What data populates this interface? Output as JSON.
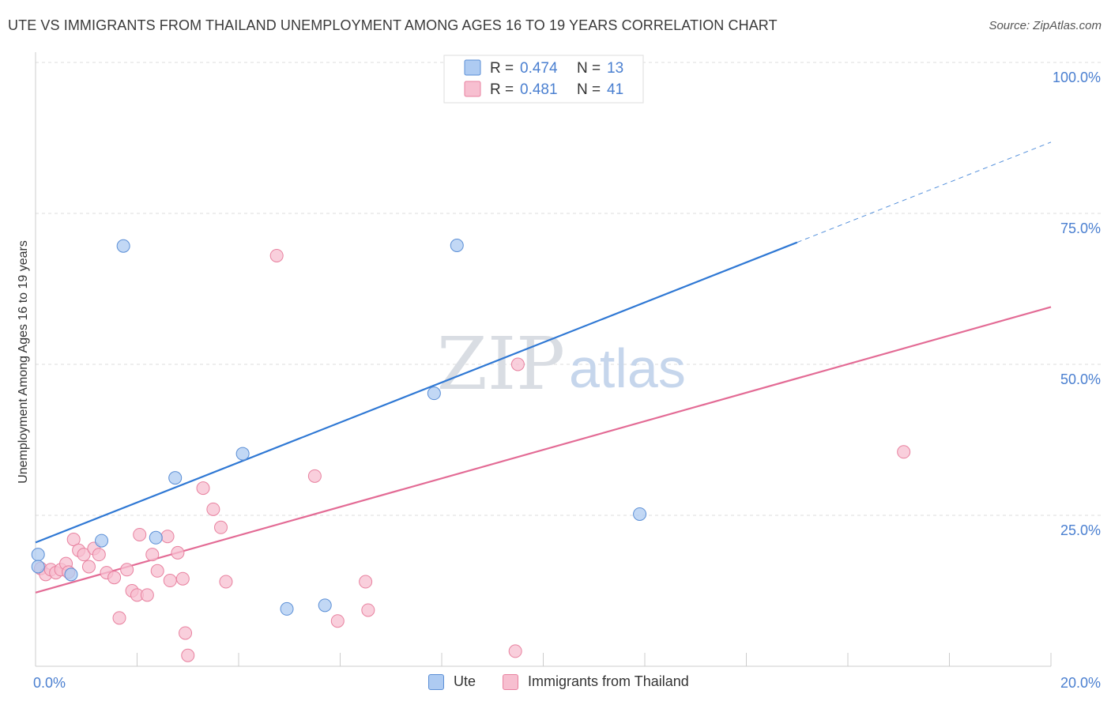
{
  "header": {
    "title": "UTE VS IMMIGRANTS FROM THAILAND UNEMPLOYMENT AMONG AGES 16 TO 19 YEARS CORRELATION CHART",
    "source": "Source: ZipAtlas.com"
  },
  "watermark": {
    "zip": "ZIP",
    "atlas": "atlas"
  },
  "colors": {
    "ute_fill": "#aecbf2",
    "ute_stroke": "#5b8fd6",
    "ute_line": "#2f78d4",
    "thai_fill": "#f7bfd0",
    "thai_stroke": "#e8819f",
    "thai_line": "#e36b95",
    "tick_text": "#4a7fd0",
    "grid": "#dddddd"
  },
  "legend": {
    "rows": [
      {
        "series": "Ute",
        "r_label": "R =",
        "r_value": "0.474",
        "n_label": "N =",
        "n_value": "13"
      },
      {
        "series": "Immigrants from Thailand",
        "r_label": "R =",
        "r_value": "0.481",
        "n_label": "N =",
        "n_value": "41"
      }
    ],
    "bottom": [
      "Ute",
      "Immigrants from Thailand"
    ]
  },
  "chart_data": {
    "type": "scatter",
    "title": "UTE VS IMMIGRANTS FROM THAILAND UNEMPLOYMENT AMONG AGES 16 TO 19 YEARS CORRELATION CHART",
    "xlabel": "",
    "ylabel": "Unemployment Among Ages 16 to 19 years",
    "xlim": [
      0,
      20
    ],
    "ylim": [
      0,
      100
    ],
    "x_tick_labels": [
      {
        "value": 0,
        "label": "0.0%"
      },
      {
        "value": 20,
        "label": "20.0%"
      }
    ],
    "y_tick_labels": [
      {
        "value": 25,
        "label": "25.0%"
      },
      {
        "value": 50,
        "label": "50.0%"
      },
      {
        "value": 75,
        "label": "75.0%"
      },
      {
        "value": 100,
        "label": "100.0%"
      }
    ],
    "x_minor_ticks": [
      0,
      2,
      4,
      6,
      8,
      10,
      12,
      14,
      16,
      18,
      20
    ],
    "grid": true,
    "legend_placement": "top-center",
    "series": [
      {
        "name": "Ute",
        "color": "#aecbf2",
        "points": [
          [
            0.05,
            18.5
          ],
          [
            0.05,
            16.5
          ],
          [
            0.7,
            15.2
          ],
          [
            1.3,
            20.8
          ],
          [
            1.73,
            69.6
          ],
          [
            2.37,
            21.3
          ],
          [
            2.75,
            31.2
          ],
          [
            4.08,
            35.2
          ],
          [
            4.95,
            9.5
          ],
          [
            5.7,
            10.1
          ],
          [
            7.85,
            45.2
          ],
          [
            8.3,
            69.7
          ],
          [
            11.9,
            25.2
          ]
        ],
        "trend": {
          "x_start": 0,
          "y_start": 20.5,
          "x_solid_end": 15,
          "y_solid_end": 70.2,
          "x_end": 20,
          "y_end": 86.8
        }
      },
      {
        "name": "Immigrants from Thailand",
        "color": "#f7bfd0",
        "points": [
          [
            0.1,
            16.2
          ],
          [
            0.2,
            15.2
          ],
          [
            0.3,
            16.0
          ],
          [
            0.4,
            15.5
          ],
          [
            0.5,
            16.0
          ],
          [
            0.6,
            17.0
          ],
          [
            0.65,
            15.6
          ],
          [
            0.75,
            21.0
          ],
          [
            0.85,
            19.2
          ],
          [
            0.95,
            18.5
          ],
          [
            1.05,
            16.5
          ],
          [
            1.15,
            19.5
          ],
          [
            1.25,
            18.5
          ],
          [
            1.4,
            15.5
          ],
          [
            1.55,
            14.7
          ],
          [
            1.65,
            8.0
          ],
          [
            1.8,
            16.0
          ],
          [
            1.9,
            12.5
          ],
          [
            2.0,
            11.8
          ],
          [
            2.05,
            21.8
          ],
          [
            2.2,
            11.8
          ],
          [
            2.3,
            18.5
          ],
          [
            2.4,
            15.8
          ],
          [
            2.6,
            21.5
          ],
          [
            2.65,
            14.2
          ],
          [
            2.8,
            18.8
          ],
          [
            2.9,
            14.5
          ],
          [
            2.95,
            5.5
          ],
          [
            3.0,
            1.8
          ],
          [
            3.3,
            29.5
          ],
          [
            3.5,
            26.0
          ],
          [
            3.65,
            23.0
          ],
          [
            3.75,
            14.0
          ],
          [
            4.75,
            68.0
          ],
          [
            5.5,
            31.5
          ],
          [
            5.95,
            7.5
          ],
          [
            6.5,
            14.0
          ],
          [
            6.55,
            9.3
          ],
          [
            9.45,
            2.5
          ],
          [
            9.5,
            50.0
          ],
          [
            17.1,
            35.5
          ]
        ],
        "trend": {
          "x_start": 0,
          "y_start": 12.2,
          "x_end": 20,
          "y_end": 59.5
        }
      }
    ]
  }
}
